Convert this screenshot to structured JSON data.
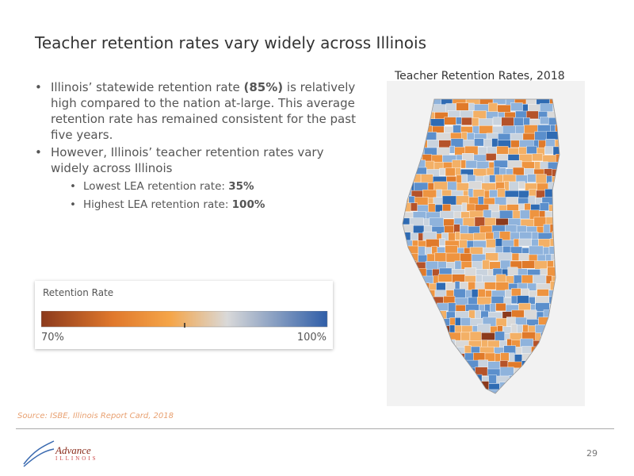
{
  "title": "Teacher retention rates vary widely across Illinois",
  "bullets": [
    {
      "level": 1,
      "runs": [
        {
          "text": "Illinois’ statewide retention rate "
        },
        {
          "text": "(85%)",
          "bold": true
        },
        {
          "text": " is relatively high compared to the nation at-large. This average retention rate has remained consistent for the past five years."
        }
      ]
    },
    {
      "level": 1,
      "runs": [
        {
          "text": "However, Illinois’ teacher retention rates vary widely across Illinois"
        }
      ]
    },
    {
      "level": 2,
      "runs": [
        {
          "text": "Lowest LEA retention rate: "
        },
        {
          "text": "35%",
          "bold": true
        }
      ]
    },
    {
      "level": 2,
      "runs": [
        {
          "text": "Highest LEA retention rate: "
        },
        {
          "text": "100%",
          "bold": true
        }
      ]
    }
  ],
  "legend": {
    "title": "Retention Rate",
    "min_label": "70%",
    "max_label": "100%"
  },
  "map": {
    "title": "Teacher Retention Rates, 2018"
  },
  "source": "Source: ISBE, Illinois Report Card, 2018",
  "footer": {
    "logo_name": "Advance",
    "logo_sub": "ILLINOIS",
    "page_number": "29"
  }
}
